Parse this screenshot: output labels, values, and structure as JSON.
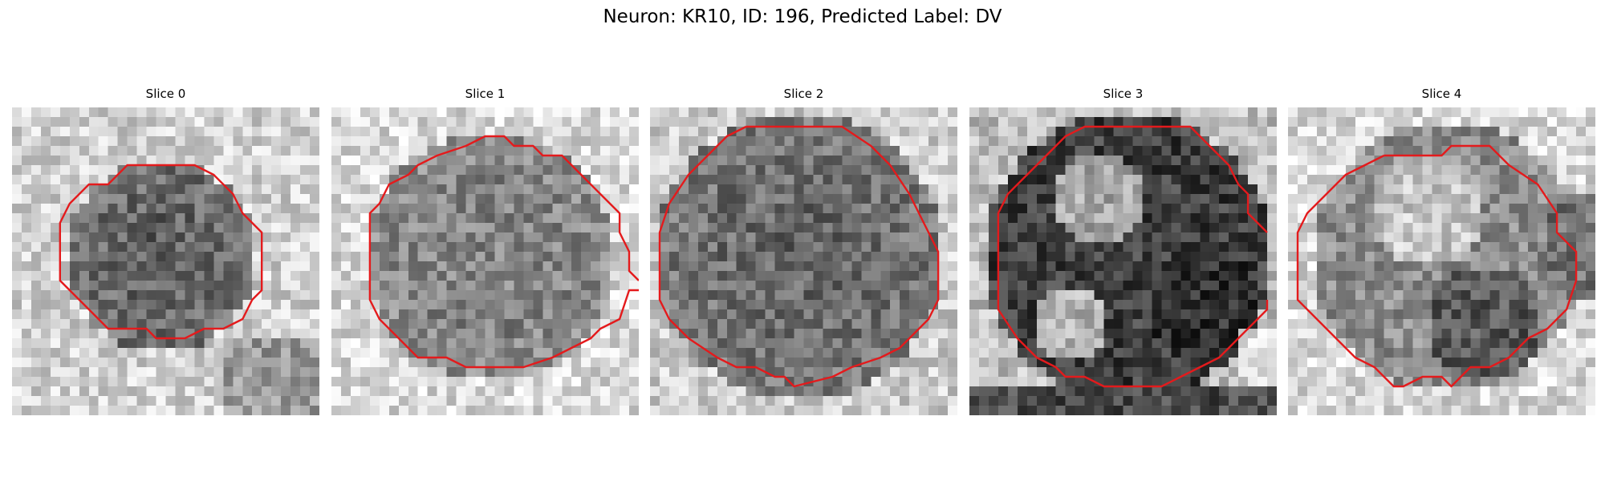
{
  "figure": {
    "title": "Neuron: KR10, ID: 196, Predicted Label: DV"
  },
  "colors": {
    "contour": "#e41a1c",
    "colormap": "gray"
  },
  "slices": [
    {
      "title": "Slice 0"
    },
    {
      "title": "Slice 1"
    },
    {
      "title": "Slice 2"
    },
    {
      "title": "Slice 3"
    },
    {
      "title": "Slice 4"
    }
  ]
}
